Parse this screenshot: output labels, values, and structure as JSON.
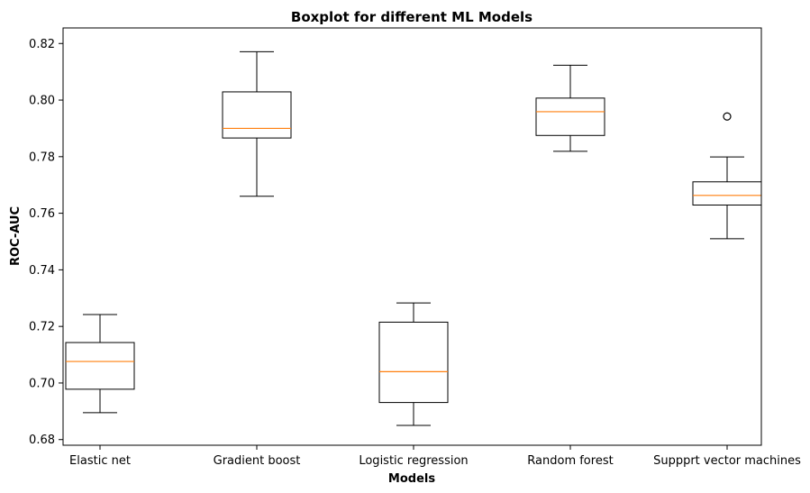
{
  "chart_data": {
    "type": "box",
    "title": "Boxplot for different ML Models",
    "xlabel": "Models",
    "ylabel": "ROC-AUC",
    "ylim": [
      0.678,
      0.8255
    ],
    "yticks": [
      "0.68",
      "0.70",
      "0.72",
      "0.74",
      "0.76",
      "0.78",
      "0.80",
      "0.82"
    ],
    "grid": false,
    "legend": "none",
    "colors": {
      "box": "#000000",
      "median": "#ff7f0e",
      "axes": "#000000",
      "background": "#ffffff"
    },
    "categories": [
      "Elastic net",
      "Gradient boost",
      "Logistic regression",
      "Random forest",
      "Suppprt vector machines"
    ],
    "boxes": [
      {
        "category": "Elastic net",
        "whisker_low": 0.6895,
        "q1": 0.6978,
        "median": 0.7076,
        "q3": 0.7143,
        "whisker_high": 0.7242,
        "outliers": []
      },
      {
        "category": "Gradient boost",
        "whisker_low": 0.766,
        "q1": 0.7866,
        "median": 0.79,
        "q3": 0.8029,
        "whisker_high": 0.8171,
        "outliers": []
      },
      {
        "category": "Logistic regression",
        "whisker_low": 0.685,
        "q1": 0.6931,
        "median": 0.704,
        "q3": 0.7215,
        "whisker_high": 0.7283,
        "outliers": []
      },
      {
        "category": "Random forest",
        "whisker_low": 0.7819,
        "q1": 0.7875,
        "median": 0.7959,
        "q3": 0.8007,
        "whisker_high": 0.8123,
        "outliers": []
      },
      {
        "category": "Suppprt vector machines",
        "whisker_low": 0.751,
        "q1": 0.7629,
        "median": 0.7663,
        "q3": 0.7711,
        "whisker_high": 0.7799,
        "outliers": [
          0.7942
        ]
      }
    ]
  }
}
